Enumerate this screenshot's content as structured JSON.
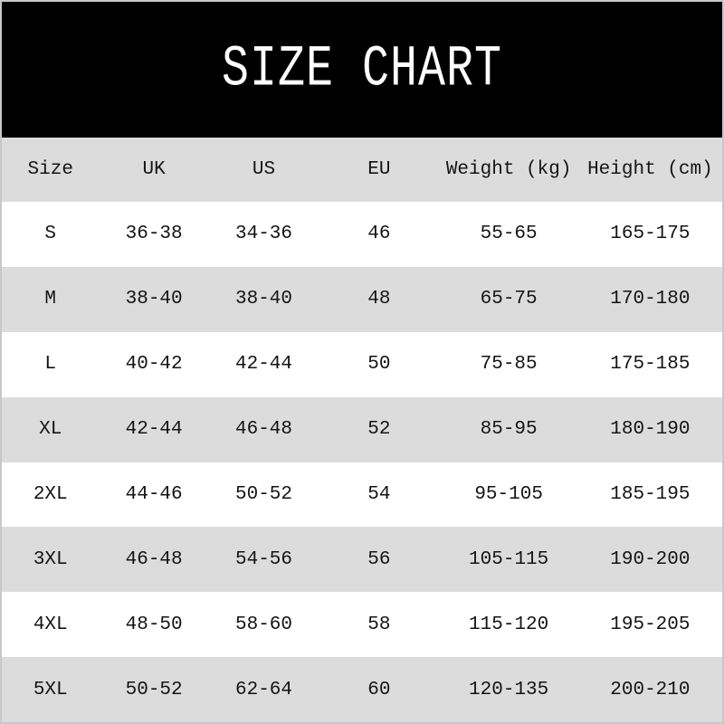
{
  "page": {
    "title": "SIZE CHART"
  },
  "colors": {
    "banner_background": "#000000",
    "banner_text": "#ffffff",
    "stripe_gray": "#dcdcdc",
    "row_white": "#ffffff",
    "table_text": "#141414",
    "outer_border": "#c8c8c8"
  },
  "table": {
    "headers": [
      "Size",
      "UK",
      "US",
      "EU",
      "Weight (kg)",
      "Height (cm)"
    ],
    "rows": [
      [
        "S",
        "36-38",
        "34-36",
        "46",
        "55-65",
        "165-175"
      ],
      [
        "M",
        "38-40",
        "38-40",
        "48",
        "65-75",
        "170-180"
      ],
      [
        "L",
        "40-42",
        "42-44",
        "50",
        "75-85",
        "175-185"
      ],
      [
        "XL",
        "42-44",
        "46-48",
        "52",
        "85-95",
        "180-190"
      ],
      [
        "2XL",
        "44-46",
        "50-52",
        "54",
        "95-105",
        "185-195"
      ],
      [
        "3XL",
        "46-48",
        "54-56",
        "56",
        "105-115",
        "190-200"
      ],
      [
        "4XL",
        "48-50",
        "58-60",
        "58",
        "115-120",
        "195-205"
      ],
      [
        "5XL",
        "50-52",
        "62-64",
        "60",
        "120-135",
        "200-210"
      ]
    ]
  },
  "chart_data": {
    "type": "table",
    "title": "SIZE CHART",
    "columns": [
      "Size",
      "UK",
      "US",
      "EU",
      "Weight (kg)",
      "Height (cm)"
    ],
    "rows": [
      {
        "size": "S",
        "uk": "36-38",
        "us": "34-36",
        "eu": "46",
        "weight_kg": "55-65",
        "height_cm": "165-175"
      },
      {
        "size": "M",
        "uk": "38-40",
        "us": "38-40",
        "eu": "48",
        "weight_kg": "65-75",
        "height_cm": "170-180"
      },
      {
        "size": "L",
        "uk": "40-42",
        "us": "42-44",
        "eu": "50",
        "weight_kg": "75-85",
        "height_cm": "175-185"
      },
      {
        "size": "XL",
        "uk": "42-44",
        "us": "46-48",
        "eu": "52",
        "weight_kg": "85-95",
        "height_cm": "180-190"
      },
      {
        "size": "2XL",
        "uk": "44-46",
        "us": "50-52",
        "eu": "54",
        "weight_kg": "95-105",
        "height_cm": "185-195"
      },
      {
        "size": "3XL",
        "uk": "46-48",
        "us": "54-56",
        "eu": "56",
        "weight_kg": "105-115",
        "height_cm": "190-200"
      },
      {
        "size": "4XL",
        "uk": "48-50",
        "us": "58-60",
        "eu": "58",
        "weight_kg": "115-120",
        "height_cm": "195-205"
      },
      {
        "size": "5XL",
        "uk": "50-52",
        "us": "62-64",
        "eu": "60",
        "weight_kg": "120-135",
        "height_cm": "200-210"
      }
    ],
    "layout": {
      "stripe_pattern": "header gray, then rows alternate white/gray starting white",
      "alignment": "all cells centered",
      "grid": false
    }
  }
}
